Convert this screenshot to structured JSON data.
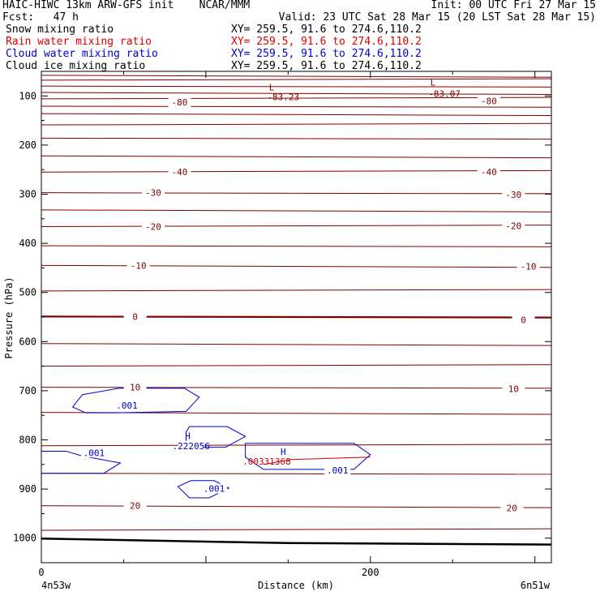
{
  "header": {
    "title_left": "HAIC-HIWC 13km ARW-GFS init    NCAR/MMM",
    "init": "Init: 00 UTC Fri 27 Mar 15",
    "fcst": "Fcst:   47 h",
    "valid": "Valid: 23 UTC Sat 28 Mar 15 (20 LST Sat 28 Mar 15)"
  },
  "legend": [
    {
      "label": "Snow mixing ratio",
      "xy": "XY= 259.5, 91.6 to 274.6,110.2",
      "color": "#000000"
    },
    {
      "label": "Rain water mixing ratio",
      "xy": "XY= 259.5, 91.6 to 274.6,110.2",
      "color": "#dd0000"
    },
    {
      "label": "Cloud water mixing ratio",
      "xy": "XY= 259.5, 91.6 to 274.6,110.2",
      "color": "#0000cc"
    },
    {
      "label": "Cloud ice mixing ratio",
      "xy": "XY= 259.5, 91.6 to 274.6,110.2",
      "color": "#000000"
    }
  ],
  "chart_data": {
    "type": "cross-section",
    "ylabel": "Pressure (hPa)",
    "xlabel": "Distance (km)",
    "y_ticks": [
      100,
      200,
      300,
      400,
      500,
      600,
      700,
      800,
      900,
      1000
    ],
    "x_ticks": [
      0,
      200
    ],
    "ylim": [
      50,
      1050
    ],
    "y_scale": "linear-pressure",
    "xlim": [
      0,
      310
    ],
    "x_end_labels": {
      "left": "4n53w",
      "right": "6n51w"
    },
    "temperature_color": "#800000",
    "cloud_water_color": "#0000cc",
    "rain_color": "#cc0000",
    "temperature_labels": [
      {
        "text": "-80",
        "x": 84,
        "p": 113
      },
      {
        "text": "-80",
        "x": 272,
        "p": 110
      },
      {
        "text": "-40",
        "x": 84,
        "p": 255
      },
      {
        "text": "-40",
        "x": 272,
        "p": 255
      },
      {
        "text": "-30",
        "x": 68,
        "p": 297
      },
      {
        "text": "-30",
        "x": 287,
        "p": 301
      },
      {
        "text": "-20",
        "x": 68,
        "p": 366
      },
      {
        "text": "-20",
        "x": 287,
        "p": 364
      },
      {
        "text": "-10",
        "x": 59,
        "p": 445
      },
      {
        "text": "-10",
        "x": 296,
        "p": 447
      },
      {
        "text": "0",
        "x": 57,
        "p": 549
      },
      {
        "text": "0",
        "x": 293,
        "p": 556
      },
      {
        "text": "10",
        "x": 57,
        "p": 693
      },
      {
        "text": "10",
        "x": 287,
        "p": 696
      },
      {
        "text": "20",
        "x": 57,
        "p": 934
      },
      {
        "text": "20",
        "x": 286,
        "p": 939
      }
    ],
    "temperature_lines_p": [
      58,
      68,
      80,
      93,
      106,
      121,
      136,
      159,
      186,
      222,
      255,
      297,
      332,
      366,
      405,
      445,
      497,
      549,
      604,
      650,
      693,
      744,
      812,
      868,
      934,
      984
    ],
    "extrema": [
      {
        "text": "L",
        "x": 140,
        "p": 82
      },
      {
        "text": "-83.23",
        "x": 147,
        "p": 102
      },
      {
        "text": "L",
        "x": 238,
        "p": 72
      },
      {
        "text": "-83.07",
        "x": 245,
        "p": 95
      },
      {
        "text": "H",
        "x": 89,
        "p": 792
      },
      {
        "text": ".222056",
        "x": 91,
        "p": 812
      },
      {
        "text": "H",
        "x": 147,
        "p": 824
      },
      {
        "text": ".001",
        "x": 52,
        "p": 730
      },
      {
        "text": ".001",
        "x": 32,
        "p": 826
      },
      {
        "text": ".001",
        "x": 105,
        "p": 899
      },
      {
        "text": ".001",
        "x": 180,
        "p": 862
      },
      {
        "text": ".00331368",
        "x": 137,
        "p": 844
      }
    ],
    "cloud_water_contours": [
      [
        [
          19,
          733
        ],
        [
          25,
          708
        ],
        [
          47,
          695
        ],
        [
          87,
          695
        ],
        [
          96,
          713
        ],
        [
          88,
          742
        ],
        [
          46,
          745
        ],
        [
          27,
          745
        ]
      ],
      [
        [
          88,
          784
        ],
        [
          90,
          773
        ],
        [
          113,
          773
        ],
        [
          124,
          793
        ],
        [
          112,
          815
        ],
        [
          88,
          815
        ]
      ],
      [
        [
          124,
          807
        ],
        [
          135,
          807
        ],
        [
          190,
          807
        ],
        [
          200,
          830
        ],
        [
          190,
          860
        ],
        [
          135,
          860
        ],
        [
          124,
          835
        ]
      ],
      [
        [
          0,
          823
        ],
        [
          15,
          823
        ],
        [
          25,
          833
        ],
        [
          48,
          847
        ],
        [
          38,
          868
        ],
        [
          15,
          868
        ],
        [
          0,
          868
        ]
      ],
      [
        [
          83,
          895
        ],
        [
          91,
          883
        ],
        [
          105,
          883
        ],
        [
          114,
          898
        ],
        [
          102,
          918
        ],
        [
          90,
          918
        ]
      ]
    ],
    "ground": {
      "p_left": 1001,
      "p_mid": 1010,
      "p_right": 1013
    }
  }
}
